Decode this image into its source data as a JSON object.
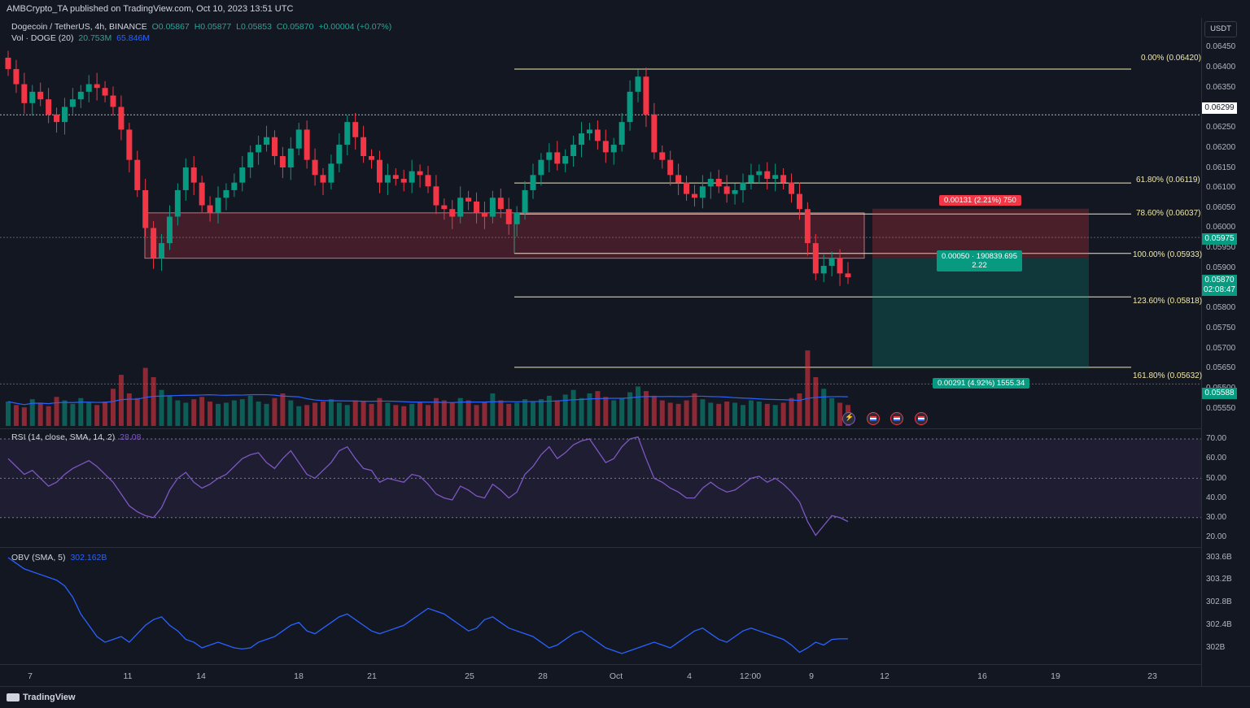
{
  "publisher": "AMBCrypto_TA published on TradingView.com, Oct 10, 2023 13:51 UTC",
  "header": {
    "symbol": "Dogecoin / TetherUS, 4h, BINANCE",
    "ohlc": {
      "o": "O0.05867",
      "h": "H0.05877",
      "l": "L0.05853",
      "c": "C0.05870",
      "chg": "+0.00004 (+0.07%)"
    },
    "volume_label": "Vol · DOGE (20)",
    "volume_v1": "20.753M",
    "volume_v2": "65.846M",
    "rsi_label": "RSI (14, close, SMA, 14, 2)",
    "rsi_value": "28.08",
    "obv_label": "OBV (SMA, 5)",
    "obv_value": "302.162B"
  },
  "currency_button": "USDT",
  "colors": {
    "up": "#089981",
    "down": "#f23645",
    "fib": "#f0e8a8",
    "rsi": "#7e57c2",
    "obv": "#2962ff",
    "vol_ma": "#2962ff",
    "bg": "#131722"
  },
  "price_axis": [
    "0.06450",
    "0.06400",
    "0.06350",
    "0.06250",
    "0.06200",
    "0.06150",
    "0.06100",
    "0.06050",
    "0.06000",
    "0.05950",
    "0.05900",
    "0.05800",
    "0.05750",
    "0.05700",
    "0.05650",
    "0.05500",
    "0.05550"
  ],
  "price_tags": [
    {
      "text": "0.06299",
      "style": "white"
    },
    {
      "text": "0.05975",
      "style": "green"
    },
    {
      "text": "0.05870",
      "sub": "02:08:47",
      "style": "green"
    },
    {
      "text": "0.05588",
      "style": "green"
    }
  ],
  "rsi_axis": [
    "70.00",
    "60.00",
    "50.00",
    "40.00",
    "30.00",
    "20.00"
  ],
  "obv_axis": [
    "303.6B",
    "303.2B",
    "302.8B",
    "302.4B",
    "302B"
  ],
  "x_axis": [
    "7",
    "11",
    "14",
    "18",
    "21",
    "25",
    "28",
    "Oct",
    "4",
    "12:00",
    "9",
    "12",
    "16",
    "19",
    "23"
  ],
  "fib_levels": [
    {
      "label": "0.00% (0.06420)",
      "price": 0.0642
    },
    {
      "label": "61.80% (0.06119)",
      "price": 0.06119
    },
    {
      "label": "78.60% (0.06037)",
      "price": 0.06037
    },
    {
      "label": "100.00% (0.05933)",
      "price": 0.05933
    },
    {
      "label": "123.60% (0.05818)",
      "price": 0.05818
    },
    {
      "label": "161.80% (0.05632)",
      "price": 0.05632
    }
  ],
  "position": {
    "stop_label": "0.00131 (2.21%) 750",
    "entry_label_1": "0.00050 · 190839.695",
    "entry_label_2": "2.22",
    "target_label": "0.00291 (4.92%) 1555.34",
    "entry": 0.0592,
    "stop": 0.06051,
    "target": 0.05629
  },
  "footer_logo": "TradingView",
  "chart_data": {
    "type": "line",
    "title": "Dogecoin / TetherUS, 4h, BINANCE",
    "xlabel": "",
    "ylabel": "",
    "ylim": [
      0.0552,
      0.0648
    ],
    "price_series_close": [
      0.0642,
      0.0638,
      0.0633,
      0.0636,
      0.0634,
      0.063,
      0.0628,
      0.0632,
      0.0634,
      0.0636,
      0.0638,
      0.0637,
      0.0635,
      0.0632,
      0.0626,
      0.0618,
      0.061,
      0.06,
      0.0592,
      0.0596,
      0.0603,
      0.061,
      0.0616,
      0.0612,
      0.0606,
      0.0604,
      0.0608,
      0.061,
      0.0612,
      0.0616,
      0.062,
      0.0622,
      0.0624,
      0.0619,
      0.0616,
      0.0621,
      0.0626,
      0.0618,
      0.0614,
      0.0612,
      0.0617,
      0.0622,
      0.0628,
      0.0624,
      0.0619,
      0.0618,
      0.0612,
      0.0614,
      0.0613,
      0.0612,
      0.0615,
      0.0614,
      0.0611,
      0.0606,
      0.0605,
      0.0603,
      0.0608,
      0.0607,
      0.0604,
      0.0603,
      0.0608,
      0.0605,
      0.0601,
      0.0604,
      0.061,
      0.0614,
      0.0618,
      0.062,
      0.0617,
      0.0619,
      0.0622,
      0.0625,
      0.0626,
      0.0623,
      0.062,
      0.0622,
      0.0628,
      0.0636,
      0.064,
      0.063,
      0.062,
      0.0618,
      0.0614,
      0.0612,
      0.0609,
      0.0608,
      0.0611,
      0.0613,
      0.0611,
      0.0609,
      0.061,
      0.0612,
      0.0614,
      0.0615,
      0.0613,
      0.0614,
      0.0612,
      0.0609,
      0.0605,
      0.0596,
      0.0588,
      0.059,
      0.0592,
      0.0588,
      0.0587
    ],
    "volume_series": [
      2.1,
      1.8,
      1.6,
      2.3,
      2.0,
      1.7,
      2.5,
      2.2,
      1.9,
      2.4,
      2.0,
      1.8,
      2.1,
      3.2,
      4.4,
      2.8,
      2.4,
      5.0,
      4.2,
      3.1,
      2.6,
      2.2,
      2.0,
      2.3,
      2.5,
      2.1,
      1.9,
      2.0,
      2.2,
      2.3,
      2.6,
      2.1,
      1.9,
      2.4,
      2.8,
      2.2,
      1.7,
      1.8,
      2.0,
      2.1,
      2.3,
      2.0,
      1.8,
      2.2,
      2.1,
      1.9,
      2.4,
      2.0,
      1.8,
      1.7,
      1.9,
      2.1,
      1.8,
      2.4,
      2.2,
      2.0,
      2.4,
      2.2,
      1.8,
      2.1,
      2.8,
      2.2,
      1.9,
      2.0,
      2.3,
      2.1,
      2.3,
      2.6,
      2.2,
      2.7,
      3.1,
      2.4,
      2.8,
      3.0,
      2.5,
      2.2,
      2.4,
      2.9,
      3.4,
      3.0,
      2.6,
      2.2,
      2.0,
      1.9,
      2.2,
      2.8,
      2.3,
      2.0,
      1.9,
      2.1,
      2.0,
      1.8,
      2.2,
      2.1,
      1.9,
      1.8,
      2.0,
      2.4,
      2.8,
      6.5,
      4.2,
      3.2,
      2.4,
      2.0,
      1.8
    ],
    "volume_unit": "M",
    "rsi_series": [
      60,
      56,
      52,
      54,
      50,
      46,
      48,
      52,
      55,
      57,
      59,
      56,
      52,
      48,
      42,
      36,
      33,
      31,
      30,
      35,
      44,
      50,
      53,
      48,
      45,
      47,
      50,
      52,
      56,
      60,
      62,
      63,
      58,
      55,
      60,
      64,
      58,
      52,
      50,
      54,
      58,
      64,
      66,
      60,
      55,
      54,
      48,
      50,
      49,
      48,
      52,
      51,
      47,
      42,
      40,
      39,
      46,
      44,
      41,
      40,
      47,
      44,
      40,
      43,
      52,
      56,
      62,
      66,
      60,
      63,
      67,
      69,
      70,
      64,
      58,
      60,
      66,
      70,
      71,
      60,
      50,
      48,
      45,
      43,
      40,
      40,
      45,
      48,
      45,
      43,
      44,
      47,
      50,
      51,
      48,
      50,
      47,
      43,
      38,
      28,
      21,
      26,
      31,
      30,
      28
    ],
    "rsi_ylim": [
      20,
      70
    ],
    "obv_series": [
      303.6,
      303.5,
      303.4,
      303.35,
      303.3,
      303.25,
      303.2,
      303.1,
      302.9,
      302.6,
      302.4,
      302.2,
      302.1,
      302.15,
      302.2,
      302.1,
      302.25,
      302.4,
      302.5,
      302.55,
      302.4,
      302.3,
      302.15,
      302.1,
      302.0,
      302.05,
      302.1,
      302.05,
      302.0,
      301.98,
      302.0,
      302.1,
      302.15,
      302.2,
      302.3,
      302.4,
      302.45,
      302.3,
      302.25,
      302.35,
      302.45,
      302.55,
      302.6,
      302.5,
      302.4,
      302.3,
      302.25,
      302.3,
      302.35,
      302.4,
      302.5,
      302.6,
      302.7,
      302.65,
      302.6,
      302.5,
      302.4,
      302.3,
      302.35,
      302.5,
      302.55,
      302.45,
      302.35,
      302.3,
      302.25,
      302.2,
      302.1,
      302.0,
      302.05,
      302.15,
      302.25,
      302.3,
      302.2,
      302.1,
      302.0,
      301.95,
      301.9,
      301.95,
      302.0,
      302.05,
      302.1,
      302.05,
      302.0,
      302.1,
      302.2,
      302.3,
      302.35,
      302.25,
      302.15,
      302.1,
      302.2,
      302.3,
      302.35,
      302.3,
      302.25,
      302.2,
      302.15,
      302.05,
      301.92,
      302.0,
      302.1,
      302.05,
      302.15,
      302.16,
      302.16
    ],
    "obv_ylim": [
      301.9,
      303.7
    ],
    "obv_unit": "B"
  }
}
